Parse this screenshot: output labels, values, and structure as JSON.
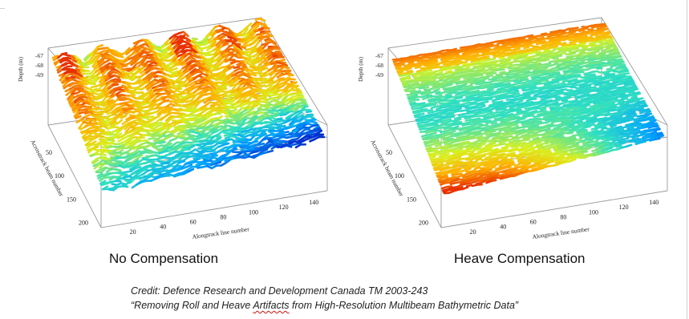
{
  "chart_data": [
    {
      "type": "surface3d",
      "caption": "No Compensation",
      "zlabel": "Depth (m)",
      "ylabel": "Acrosstrack beam number",
      "xlabel": "Alongtrack line number",
      "z_ticks": [
        "-67",
        "-68",
        "-69"
      ],
      "y_ticks": [
        "50",
        "100",
        "150",
        "200"
      ],
      "x_ticks": [
        "20",
        "40",
        "60",
        "80",
        "100",
        "120",
        "140"
      ],
      "ylim": [
        0,
        220
      ],
      "xlim": [
        0,
        150
      ],
      "colorscale": [
        "#0030d0",
        "#00a0ff",
        "#30e0c0",
        "#d8f020",
        "#ffb000",
        "#e83000"
      ],
      "surface": "striped, rough (roll and heave artifacts)"
    },
    {
      "type": "surface3d",
      "caption": "Heave Compensation",
      "zlabel": "Depth (m)",
      "ylabel": "Acrosstrack beam number",
      "xlabel": "Alongtrack line number",
      "z_ticks": [
        "-67",
        "-68",
        "-69"
      ],
      "y_ticks": [
        "50",
        "100",
        "150",
        "200"
      ],
      "x_ticks": [
        "20",
        "40",
        "60",
        "80",
        "100",
        "120",
        "140"
      ],
      "ylim": [
        0,
        220
      ],
      "xlim": [
        0,
        150
      ],
      "colorscale": [
        "#0030d0",
        "#00a0ff",
        "#30e0c0",
        "#d8f020",
        "#ffb000",
        "#e83000"
      ],
      "surface": "smooth"
    }
  ],
  "credit": {
    "line1": "Credit: Defence Research and Development Canada TM 2003-243",
    "line2_pre": "“Removing Roll and Heave ",
    "line2_flag": "Artifacts",
    "line2_post": " from High-Resolution Multibeam Bathymetric Data”"
  }
}
